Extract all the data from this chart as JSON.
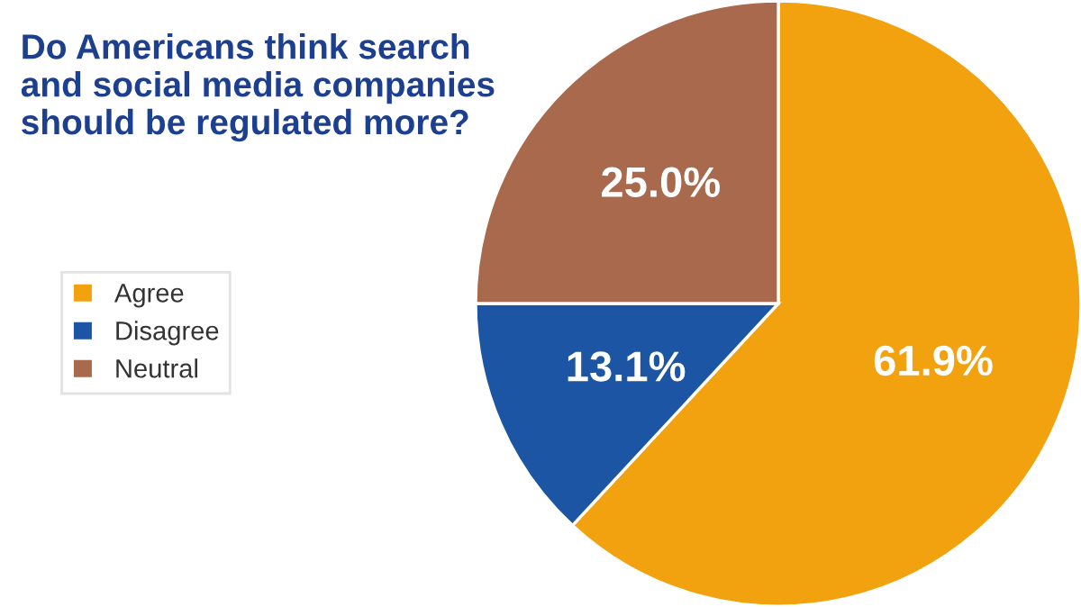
{
  "chart_data": {
    "type": "pie",
    "title": "Do Americans think search and social media companies should be regulated more?",
    "categories": [
      "Agree",
      "Disagree",
      "Neutral"
    ],
    "values": [
      61.9,
      13.1,
      25.0
    ],
    "colors": [
      "#f2a20f",
      "#1b55a3",
      "#a8694c"
    ],
    "value_labels": [
      "61.9%",
      "13.1%",
      "25.0%"
    ],
    "legend": "left"
  }
}
